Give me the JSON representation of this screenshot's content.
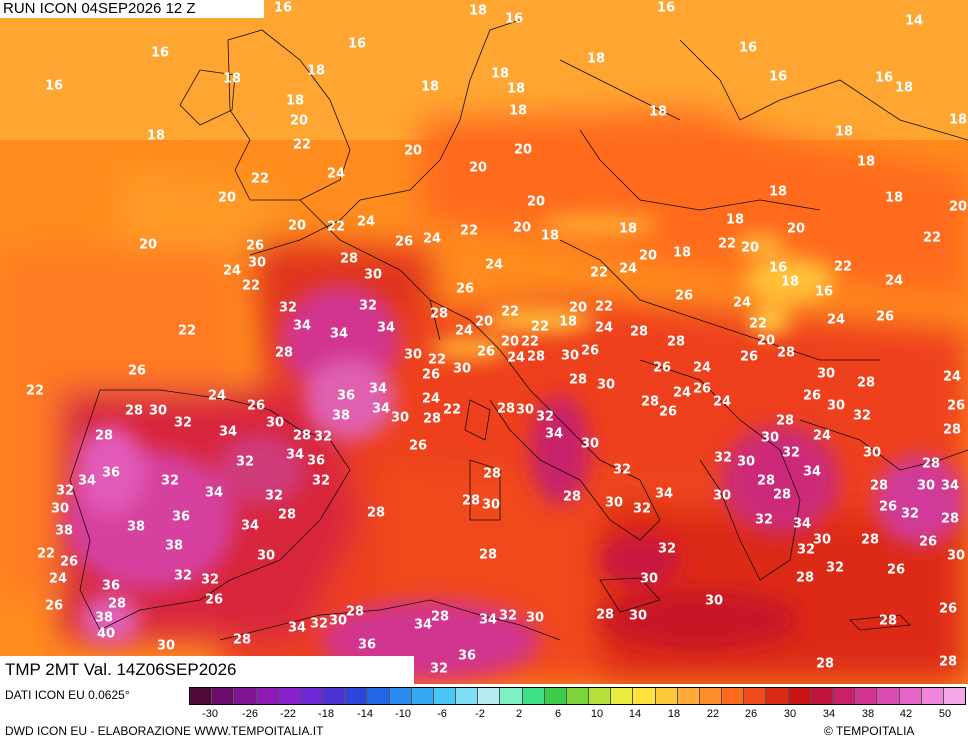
{
  "header": {
    "run_title": "RUN ICON 04SEP2026 12 Z",
    "val_title": "TMP 2MT Val. 14Z06SEP2026"
  },
  "footer": {
    "data_source": "DATI ICON EU 0.0625°",
    "credit": "DWD ICON EU - ELABORAZIONE WWW.TEMPOITALIA.IT",
    "copyright": "TEMPOITALIA"
  },
  "legend": {
    "colors": [
      "#4d0a3a",
      "#6a0d6b",
      "#7f1494",
      "#8d1ab5",
      "#8a1fd0",
      "#6e28d8",
      "#4b33d6",
      "#2f45d9",
      "#2266e6",
      "#2a8af0",
      "#35a8f3",
      "#49c8f5",
      "#7fdcf5",
      "#b8ecf0",
      "#7ff0c4",
      "#3ee08a",
      "#3ccc4a",
      "#7ad43a",
      "#b6e03a",
      "#e8ec3a",
      "#ffe23a",
      "#ffc83a",
      "#ffab3a",
      "#ff8c2a",
      "#ff6a1f",
      "#f04a1a",
      "#dd2a16",
      "#c81414",
      "#c0143a",
      "#c8216a",
      "#d2368f",
      "#dc4cb0",
      "#e666c8",
      "#ef86db",
      "#f5a6e8"
    ],
    "ticks": [
      "-30",
      "-26",
      "-22",
      "-18",
      "-14",
      "-10",
      "-6",
      "-2",
      "2",
      "6",
      "10",
      "14",
      "18",
      "22",
      "26",
      "30",
      "34",
      "38",
      "42",
      "50"
    ]
  },
  "map_labels": [
    [
      "16",
      283,
      8
    ],
    [
      "18",
      478,
      11
    ],
    [
      "16",
      514,
      19
    ],
    [
      "16",
      666,
      8
    ],
    [
      "14",
      914,
      21
    ],
    [
      "16",
      357,
      44
    ],
    [
      "16",
      160,
      53
    ],
    [
      "16",
      748,
      48
    ],
    [
      "18",
      596,
      59
    ],
    [
      "16",
      54,
      86
    ],
    [
      "18",
      232,
      79
    ],
    [
      "18",
      316,
      71
    ],
    [
      "18",
      500,
      74
    ],
    [
      "18",
      430,
      87
    ],
    [
      "16",
      778,
      77
    ],
    [
      "16",
      884,
      78
    ],
    [
      "18",
      904,
      88
    ],
    [
      "18",
      295,
      101
    ],
    [
      "18",
      516,
      89
    ],
    [
      "20",
      299,
      121
    ],
    [
      "18",
      518,
      111
    ],
    [
      "18",
      658,
      112
    ],
    [
      "18",
      156,
      136
    ],
    [
      "18",
      844,
      132
    ],
    [
      "18",
      958,
      120
    ],
    [
      "22",
      302,
      145
    ],
    [
      "20",
      413,
      151
    ],
    [
      "20",
      523,
      150
    ],
    [
      "18",
      866,
      162
    ],
    [
      "24",
      336,
      174
    ],
    [
      "20",
      478,
      168
    ],
    [
      "22",
      260,
      179
    ],
    [
      "18",
      778,
      192
    ],
    [
      "18",
      894,
      198
    ],
    [
      "20",
      958,
      207
    ],
    [
      "20",
      227,
      198
    ],
    [
      "20",
      536,
      202
    ],
    [
      "20",
      297,
      226
    ],
    [
      "22",
      336,
      227
    ],
    [
      "24",
      366,
      222
    ],
    [
      "22",
      469,
      231
    ],
    [
      "18",
      550,
      236
    ],
    [
      "18",
      628,
      229
    ],
    [
      "18",
      735,
      220
    ],
    [
      "20",
      796,
      229
    ],
    [
      "22",
      932,
      238
    ],
    [
      "20",
      148,
      245
    ],
    [
      "26",
      255,
      246
    ],
    [
      "26",
      404,
      242
    ],
    [
      "24",
      432,
      239
    ],
    [
      "20",
      522,
      228
    ],
    [
      "22",
      727,
      244
    ],
    [
      "20",
      750,
      248
    ],
    [
      "20",
      648,
      256
    ],
    [
      "18",
      682,
      253
    ],
    [
      "30",
      257,
      263
    ],
    [
      "28",
      349,
      259
    ],
    [
      "24",
      494,
      265
    ],
    [
      "16",
      778,
      268
    ],
    [
      "22",
      843,
      267
    ],
    [
      "24",
      232,
      271
    ],
    [
      "30",
      373,
      275
    ],
    [
      "22",
      599,
      273
    ],
    [
      "24",
      628,
      269
    ],
    [
      "18",
      790,
      282
    ],
    [
      "16",
      824,
      292
    ],
    [
      "24",
      894,
      281
    ],
    [
      "22",
      251,
      286
    ],
    [
      "26",
      465,
      289
    ],
    [
      "26",
      684,
      296
    ],
    [
      "28",
      439,
      314
    ],
    [
      "20",
      578,
      308
    ],
    [
      "22",
      604,
      307
    ],
    [
      "24",
      742,
      303
    ],
    [
      "22",
      510,
      312
    ],
    [
      "32",
      288,
      308
    ],
    [
      "32",
      368,
      306
    ],
    [
      "34",
      302,
      326
    ],
    [
      "34",
      339,
      334
    ],
    [
      "34",
      386,
      328
    ],
    [
      "24",
      464,
      331
    ],
    [
      "20",
      484,
      322
    ],
    [
      "22",
      540,
      327
    ],
    [
      "18",
      568,
      322
    ],
    [
      "24",
      604,
      328
    ],
    [
      "22",
      758,
      324
    ],
    [
      "24",
      836,
      320
    ],
    [
      "26",
      885,
      317
    ],
    [
      "22",
      187,
      331
    ],
    [
      "28",
      639,
      332
    ],
    [
      "20",
      766,
      341
    ],
    [
      "28",
      284,
      353
    ],
    [
      "30",
      413,
      355
    ],
    [
      "22",
      437,
      360
    ],
    [
      "26",
      486,
      352
    ],
    [
      "20",
      510,
      342
    ],
    [
      "22",
      530,
      342
    ],
    [
      "24",
      516,
      358
    ],
    [
      "28",
      536,
      357
    ],
    [
      "30",
      570,
      356
    ],
    [
      "26",
      590,
      351
    ],
    [
      "28",
      676,
      342
    ],
    [
      "28",
      786,
      353
    ],
    [
      "26",
      749,
      357
    ],
    [
      "30",
      462,
      369
    ],
    [
      "26",
      431,
      375
    ],
    [
      "26",
      137,
      371
    ],
    [
      "24",
      702,
      368
    ],
    [
      "28",
      578,
      380
    ],
    [
      "30",
      606,
      385
    ],
    [
      "26",
      662,
      368
    ],
    [
      "30",
      826,
      374
    ],
    [
      "28",
      866,
      383
    ],
    [
      "24",
      952,
      377
    ],
    [
      "22",
      35,
      391
    ],
    [
      "36",
      346,
      396
    ],
    [
      "34",
      378,
      389
    ],
    [
      "24",
      217,
      396
    ],
    [
      "24",
      682,
      393
    ],
    [
      "24",
      722,
      402
    ],
    [
      "26",
      702,
      389
    ],
    [
      "26",
      256,
      406
    ],
    [
      "28",
      134,
      411
    ],
    [
      "30",
      158,
      411
    ],
    [
      "34",
      381,
      409
    ],
    [
      "38",
      341,
      416
    ],
    [
      "30",
      400,
      418
    ],
    [
      "24",
      431,
      399
    ],
    [
      "22",
      452,
      410
    ],
    [
      "28",
      506,
      409
    ],
    [
      "30",
      525,
      410
    ],
    [
      "32",
      545,
      417
    ],
    [
      "28",
      650,
      402
    ],
    [
      "26",
      668,
      412
    ],
    [
      "26",
      812,
      396
    ],
    [
      "30",
      836,
      406
    ],
    [
      "32",
      862,
      416
    ],
    [
      "26",
      956,
      406
    ],
    [
      "32",
      183,
      423
    ],
    [
      "30",
      275,
      423
    ],
    [
      "28",
      432,
      419
    ],
    [
      "28",
      785,
      421
    ],
    [
      "24",
      822,
      436
    ],
    [
      "28",
      302,
      436
    ],
    [
      "32",
      323,
      437
    ],
    [
      "34",
      228,
      432
    ],
    [
      "28",
      104,
      436
    ],
    [
      "34",
      554,
      434
    ],
    [
      "28",
      952,
      430
    ],
    [
      "30",
      590,
      444
    ],
    [
      "26",
      418,
      446
    ],
    [
      "30",
      770,
      438
    ],
    [
      "32",
      791,
      453
    ],
    [
      "36",
      316,
      461
    ],
    [
      "34",
      295,
      455
    ],
    [
      "30",
      872,
      453
    ],
    [
      "32",
      245,
      462
    ],
    [
      "36",
      111,
      473
    ],
    [
      "30",
      746,
      462
    ],
    [
      "32",
      723,
      458
    ],
    [
      "32",
      622,
      470
    ],
    [
      "34",
      812,
      472
    ],
    [
      "28",
      931,
      464
    ],
    [
      "32",
      321,
      481
    ],
    [
      "28",
      492,
      474
    ],
    [
      "32",
      170,
      481
    ],
    [
      "34",
      87,
      481
    ],
    [
      "34",
      214,
      493
    ],
    [
      "32",
      274,
      496
    ],
    [
      "28",
      572,
      497
    ],
    [
      "34",
      664,
      494
    ],
    [
      "30",
      614,
      503
    ],
    [
      "28",
      766,
      481
    ],
    [
      "28",
      782,
      495
    ],
    [
      "30",
      722,
      496
    ],
    [
      "28",
      879,
      486
    ],
    [
      "30",
      926,
      486
    ],
    [
      "34",
      950,
      486
    ],
    [
      "32",
      65,
      491
    ],
    [
      "28",
      471,
      501
    ],
    [
      "30",
      491,
      505
    ],
    [
      "26",
      888,
      507
    ],
    [
      "32",
      910,
      514
    ],
    [
      "30",
      60,
      509
    ],
    [
      "36",
      181,
      517
    ],
    [
      "34",
      250,
      526
    ],
    [
      "28",
      287,
      515
    ],
    [
      "32",
      642,
      509
    ],
    [
      "32",
      764,
      520
    ],
    [
      "34",
      802,
      524
    ],
    [
      "28",
      376,
      513
    ],
    [
      "28",
      950,
      519
    ],
    [
      "38",
      64,
      531
    ],
    [
      "38",
      136,
      527
    ],
    [
      "30",
      822,
      540
    ],
    [
      "32",
      667,
      549
    ],
    [
      "28",
      870,
      540
    ],
    [
      "30",
      266,
      556
    ],
    [
      "28",
      488,
      555
    ],
    [
      "32",
      806,
      550
    ],
    [
      "26",
      928,
      542
    ],
    [
      "38",
      174,
      546
    ],
    [
      "22",
      46,
      554
    ],
    [
      "26",
      69,
      562
    ],
    [
      "32",
      183,
      576
    ],
    [
      "32",
      210,
      580
    ],
    [
      "30",
      649,
      579
    ],
    [
      "32",
      835,
      568
    ],
    [
      "26",
      896,
      570
    ],
    [
      "30",
      956,
      556
    ],
    [
      "24",
      58,
      579
    ],
    [
      "36",
      111,
      586
    ],
    [
      "28",
      805,
      578
    ],
    [
      "28",
      117,
      604
    ],
    [
      "26",
      214,
      600
    ],
    [
      "26",
      54,
      606
    ],
    [
      "28",
      355,
      612
    ],
    [
      "30",
      338,
      621
    ],
    [
      "28",
      440,
      617
    ],
    [
      "34",
      488,
      620
    ],
    [
      "32",
      508,
      616
    ],
    [
      "30",
      535,
      618
    ],
    [
      "28",
      605,
      615
    ],
    [
      "30",
      638,
      616
    ],
    [
      "30",
      714,
      601
    ],
    [
      "26",
      948,
      609
    ],
    [
      "38",
      104,
      618
    ],
    [
      "40",
      106,
      634
    ],
    [
      "30",
      166,
      646
    ],
    [
      "28",
      242,
      640
    ],
    [
      "34",
      297,
      628
    ],
    [
      "32",
      319,
      624
    ],
    [
      "34",
      423,
      625
    ],
    [
      "28",
      888,
      621
    ],
    [
      "36",
      367,
      645
    ],
    [
      "36",
      467,
      656
    ],
    [
      "32",
      439,
      669
    ],
    [
      "28",
      825,
      664
    ],
    [
      "28",
      948,
      662
    ]
  ]
}
